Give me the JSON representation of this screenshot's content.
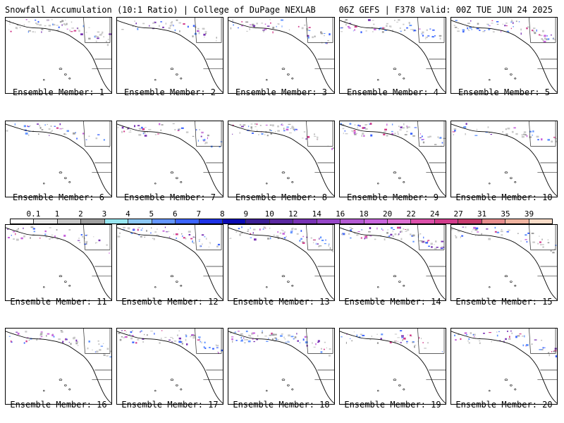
{
  "header": {
    "left": "Snowfall Accumulation (10:1 Ratio) | College of DuPage NEXLAB",
    "right": "06Z GEFS | F378 Valid: 00Z TUE JUN 24 2025"
  },
  "members": [
    "Ensemble Member: 1",
    "Ensemble Member: 2",
    "Ensemble Member: 3",
    "Ensemble Member: 4",
    "Ensemble Member: 5",
    "Ensemble Member: 6",
    "Ensemble Member: 7",
    "Ensemble Member: 8",
    "Ensemble Member: 9",
    "Ensemble Member: 10",
    "Ensemble Member: 11",
    "Ensemble Member: 12",
    "Ensemble Member: 13",
    "Ensemble Member: 14",
    "Ensemble Member: 15",
    "Ensemble Member: 16",
    "Ensemble Member: 17",
    "Ensemble Member: 18",
    "Ensemble Member: 19",
    "Ensemble Member: 20"
  ],
  "colorbar": {
    "labels": [
      "0.1",
      "1",
      "2",
      "3",
      "4",
      "5",
      "6",
      "7",
      "8",
      "9",
      "10",
      "12",
      "14",
      "16",
      "18",
      "20",
      "22",
      "24",
      "27",
      "31",
      "35",
      "39"
    ],
    "colors": [
      "#ffffff",
      "#e6e6e6",
      "#c8c8c8",
      "#a0a0a0",
      "#96e6f0",
      "#8cc8f5",
      "#6496ff",
      "#3c64ff",
      "#1e32e6",
      "#0a0ab4",
      "#3c1e96",
      "#5a28a0",
      "#7832b4",
      "#9646c8",
      "#b45ad2",
      "#c864dc",
      "#dc6ed2",
      "#dc50aa",
      "#d23c8c",
      "#c83c6e",
      "#e68c8c",
      "#f0b4a0",
      "#fadcc8"
    ]
  }
}
